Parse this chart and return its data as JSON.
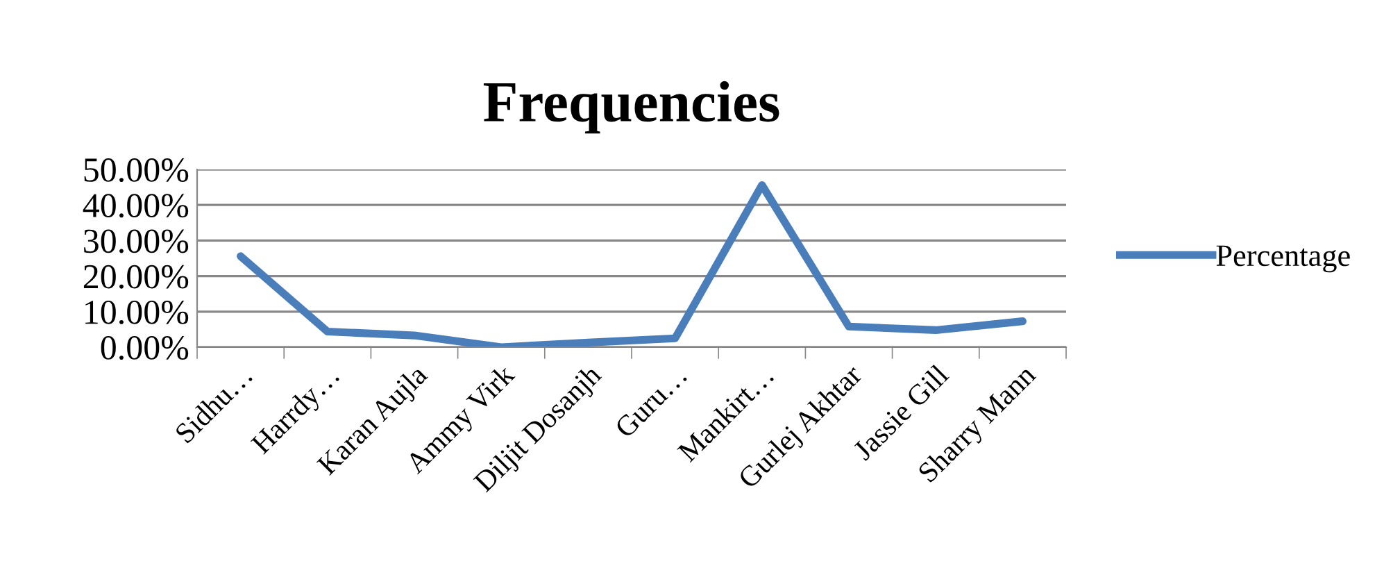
{
  "chart_data": {
    "type": "line",
    "title": "Frequencies",
    "categories": [
      "Sidhu…",
      "Harrdy…",
      "Karan Aujla",
      "Ammy Virk",
      "Diljit Dosanjh",
      "Guru…",
      "Mankirt…",
      "Gurlej Akhtar",
      "Jassie Gill",
      "Sharry Mann"
    ],
    "series": [
      {
        "name": "Percentage",
        "color": "#4a7ebb",
        "values": [
          25.6,
          4.4,
          3.3,
          0.0,
          1.3,
          2.5,
          45.6,
          5.8,
          4.8,
          7.3
        ]
      }
    ],
    "ylim": [
      0,
      50
    ],
    "yticks": [
      {
        "value": 0,
        "label": "0.00%"
      },
      {
        "value": 10,
        "label": "10.00%"
      },
      {
        "value": 20,
        "label": "20.00%"
      },
      {
        "value": 30,
        "label": "30.00%"
      },
      {
        "value": 40,
        "label": "40.00%"
      },
      {
        "value": 50,
        "label": "50.00%"
      }
    ],
    "grid": "y",
    "legend": "right",
    "marker": "none",
    "line_style": "solid"
  }
}
